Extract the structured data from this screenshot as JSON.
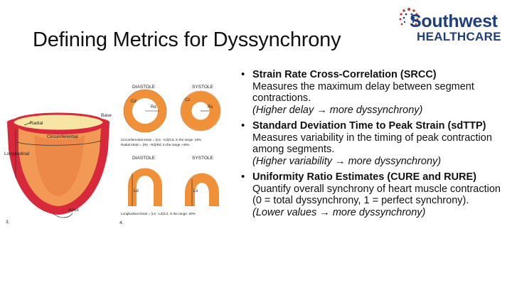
{
  "slide": {
    "title": "Defining Metrics for Dyssynchrony"
  },
  "logo": {
    "line1": "Southwest",
    "line2": "HEALTHCARE",
    "brand_color": "#1f3f7a",
    "accent_color": "#c0392b"
  },
  "figure_left": {
    "label_base": "Base",
    "label_radial": "Radial",
    "label_circumferential": "Circumferential",
    "label_longitudinal": "Longitudinal",
    "label_apex": "Apex",
    "label_number": "3.",
    "colors": {
      "epicardium": "#d8283b",
      "myocardium": "#f29a55",
      "endocardium": "#f7e6a3"
    }
  },
  "figure_right": {
    "diastole_label": "DIASTOLE",
    "systole_label": "SYSTOLE",
    "cd_label": "Cd",
    "cs_label": "Cs",
    "rd_label": "Rd",
    "rs_label": "Rs",
    "ld_label": "Ld",
    "ls_label": "Ls",
    "circ_formula": "Circumferential strain = (Cs - Cd)/Cd, in the range -20%",
    "radial_formula": "Radial strain          = (Rs - Rd)/Rd, in the range +40%",
    "long_formula": "Longitudinal strain = (Ls - Ld)/Ld, in the range -20%",
    "label_number": "4.",
    "ring_color": "#f0913a"
  },
  "bullets": [
    {
      "title": "Strain Rate Cross-Correlation (SRCC)",
      "body": "Measures the maximum delay between segment contractions.",
      "note": "(Higher delay → more dyssynchrony)"
    },
    {
      "title": "Standard Deviation Time to Peak Strain (sdTTP)",
      "body": "Measures variability in the timing of peak contraction among segments.",
      "note": "(Higher variability → more dyssynchrony)"
    },
    {
      "title": "Uniformity Ratio Estimates (CURE and RURE)",
      "body": "Quantify overall synchrony of heart muscle contraction (0 = total dyssynchrony, 1 = perfect synchrony).",
      "note": "(Lower values → more dyssynchrony)"
    }
  ]
}
